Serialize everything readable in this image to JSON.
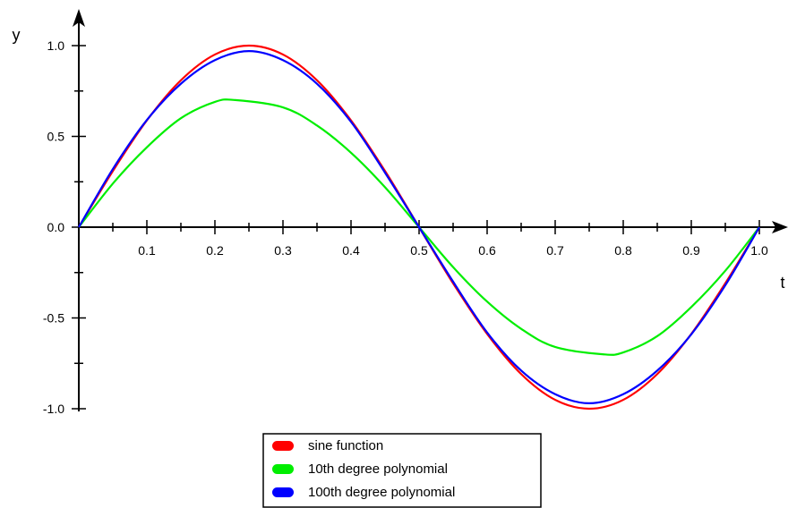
{
  "chart_data": {
    "type": "line",
    "title": "",
    "xlabel": "t",
    "ylabel": "y",
    "xlim": [
      0,
      1.0
    ],
    "ylim": [
      -1.0,
      1.0
    ],
    "x_ticks": [
      "0.1",
      "0.2",
      "0.3",
      "0.4",
      "0.5",
      "0.6",
      "0.7",
      "0.8",
      "0.9",
      "1.0"
    ],
    "y_ticks": [
      "-1.0",
      "-0.5",
      "0.0",
      "0.5",
      "1.0"
    ],
    "grid": false,
    "legend_position": "bottom-center",
    "series": [
      {
        "name": "sine function",
        "color": "#ff0000",
        "x": [
          0,
          0.05,
          0.1,
          0.15,
          0.2,
          0.25,
          0.3,
          0.35,
          0.4,
          0.45,
          0.5,
          0.55,
          0.6,
          0.65,
          0.7,
          0.75,
          0.8,
          0.85,
          0.9,
          0.95,
          1.0
        ],
        "y": [
          0,
          0.309,
          0.588,
          0.809,
          0.951,
          1.0,
          0.951,
          0.809,
          0.588,
          0.309,
          0,
          -0.309,
          -0.588,
          -0.809,
          -0.951,
          -1.0,
          -0.951,
          -0.809,
          -0.588,
          -0.309,
          0
        ]
      },
      {
        "name": "10th degree polynomial",
        "color": "#00ee00",
        "x": [
          0,
          0.05,
          0.1,
          0.15,
          0.2,
          0.23,
          0.3,
          0.35,
          0.4,
          0.45,
          0.5,
          0.55,
          0.6,
          0.65,
          0.7,
          0.77,
          0.8,
          0.85,
          0.9,
          0.95,
          1.0
        ],
        "y": [
          0,
          0.24,
          0.44,
          0.6,
          0.69,
          0.7,
          0.66,
          0.56,
          0.41,
          0.22,
          0,
          -0.22,
          -0.41,
          -0.56,
          -0.66,
          -0.7,
          -0.69,
          -0.6,
          -0.44,
          -0.24,
          0
        ]
      },
      {
        "name": "100th degree polynomial",
        "color": "#0000ff",
        "x": [
          0,
          0.05,
          0.1,
          0.15,
          0.2,
          0.25,
          0.3,
          0.35,
          0.4,
          0.45,
          0.5,
          0.55,
          0.6,
          0.65,
          0.7,
          0.75,
          0.8,
          0.85,
          0.9,
          0.95,
          1.0
        ],
        "y": [
          0,
          0.32,
          0.59,
          0.79,
          0.92,
          0.97,
          0.92,
          0.79,
          0.58,
          0.3,
          0,
          -0.3,
          -0.58,
          -0.79,
          -0.92,
          -0.97,
          -0.92,
          -0.79,
          -0.59,
          -0.32,
          0
        ]
      }
    ]
  }
}
